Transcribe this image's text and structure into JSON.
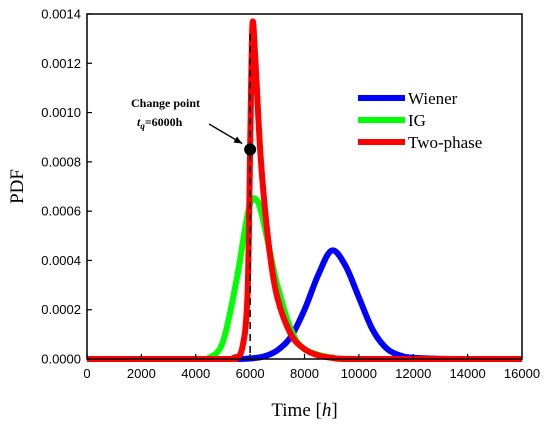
{
  "chart_data": {
    "type": "line",
    "xlabel": "Time [h]",
    "xlabel_main": "Time ",
    "xlabel_unit": "h",
    "ylabel": "PDF",
    "xlim": [
      0,
      16000
    ],
    "ylim": [
      0,
      0.0014
    ],
    "x_ticks": [
      0,
      2000,
      4000,
      6000,
      8000,
      10000,
      12000,
      14000,
      16000
    ],
    "x_tick_labels": [
      "0",
      "2000",
      "4000",
      "6000",
      "8000",
      "10000",
      "12000",
      "14000",
      "16000"
    ],
    "y_ticks": [
      0,
      0.0002,
      0.0004,
      0.0006,
      0.0008,
      0.001,
      0.0012,
      0.0014
    ],
    "y_tick_labels": [
      "0.0000",
      "0.0002",
      "0.0004",
      "0.0006",
      "0.0008",
      "0.0010",
      "0.0012",
      "0.0014"
    ],
    "legend_position": "top-right",
    "series": [
      {
        "name": "Wiener",
        "color": "#0000ff",
        "x": [
          5500,
          6000,
          6500,
          7000,
          7500,
          8000,
          8500,
          9000,
          9500,
          10000,
          10500,
          11000,
          11500,
          12000,
          13000,
          14000,
          16000
        ],
        "y": [
          0,
          2e-06,
          1e-05,
          3.5e-05,
          9e-05,
          0.0002,
          0.00034,
          0.00044,
          0.00038,
          0.00025,
          0.00012,
          4.5e-05,
          1.5e-05,
          5e-06,
          1e-06,
          0,
          0
        ]
      },
      {
        "name": "IG",
        "color": "#00ff00",
        "x": [
          0,
          4000,
          4500,
          5000,
          5500,
          5800,
          6000,
          6200,
          6400,
          6700,
          7000,
          7500,
          8000,
          9000,
          10000,
          16000
        ],
        "y": [
          0,
          0,
          5e-06,
          7e-05,
          0.00032,
          0.00052,
          0.00063,
          0.00065,
          0.0006,
          0.00045,
          0.0003,
          0.00012,
          4e-05,
          5e-06,
          0,
          0
        ]
      },
      {
        "name": "Two-phase",
        "color": "#ff0000",
        "x": [
          0,
          5000,
          5400,
          5700,
          5900,
          6000,
          6050,
          6100,
          6200,
          6400,
          6700,
          7000,
          7500,
          8000,
          8500,
          9000,
          10000,
          16000
        ],
        "y": [
          0,
          0,
          5e-06,
          4e-05,
          0.00025,
          0.00085,
          0.0012,
          0.00137,
          0.0012,
          0.0008,
          0.00045,
          0.00025,
          0.0001,
          4e-05,
          1.5e-05,
          5e-06,
          0,
          0
        ]
      }
    ],
    "change_point": {
      "x": 6000,
      "y": 0.00085,
      "label_title": "Change point",
      "label_var": "t",
      "label_sub": "q",
      "label_value": "=6000h"
    }
  }
}
